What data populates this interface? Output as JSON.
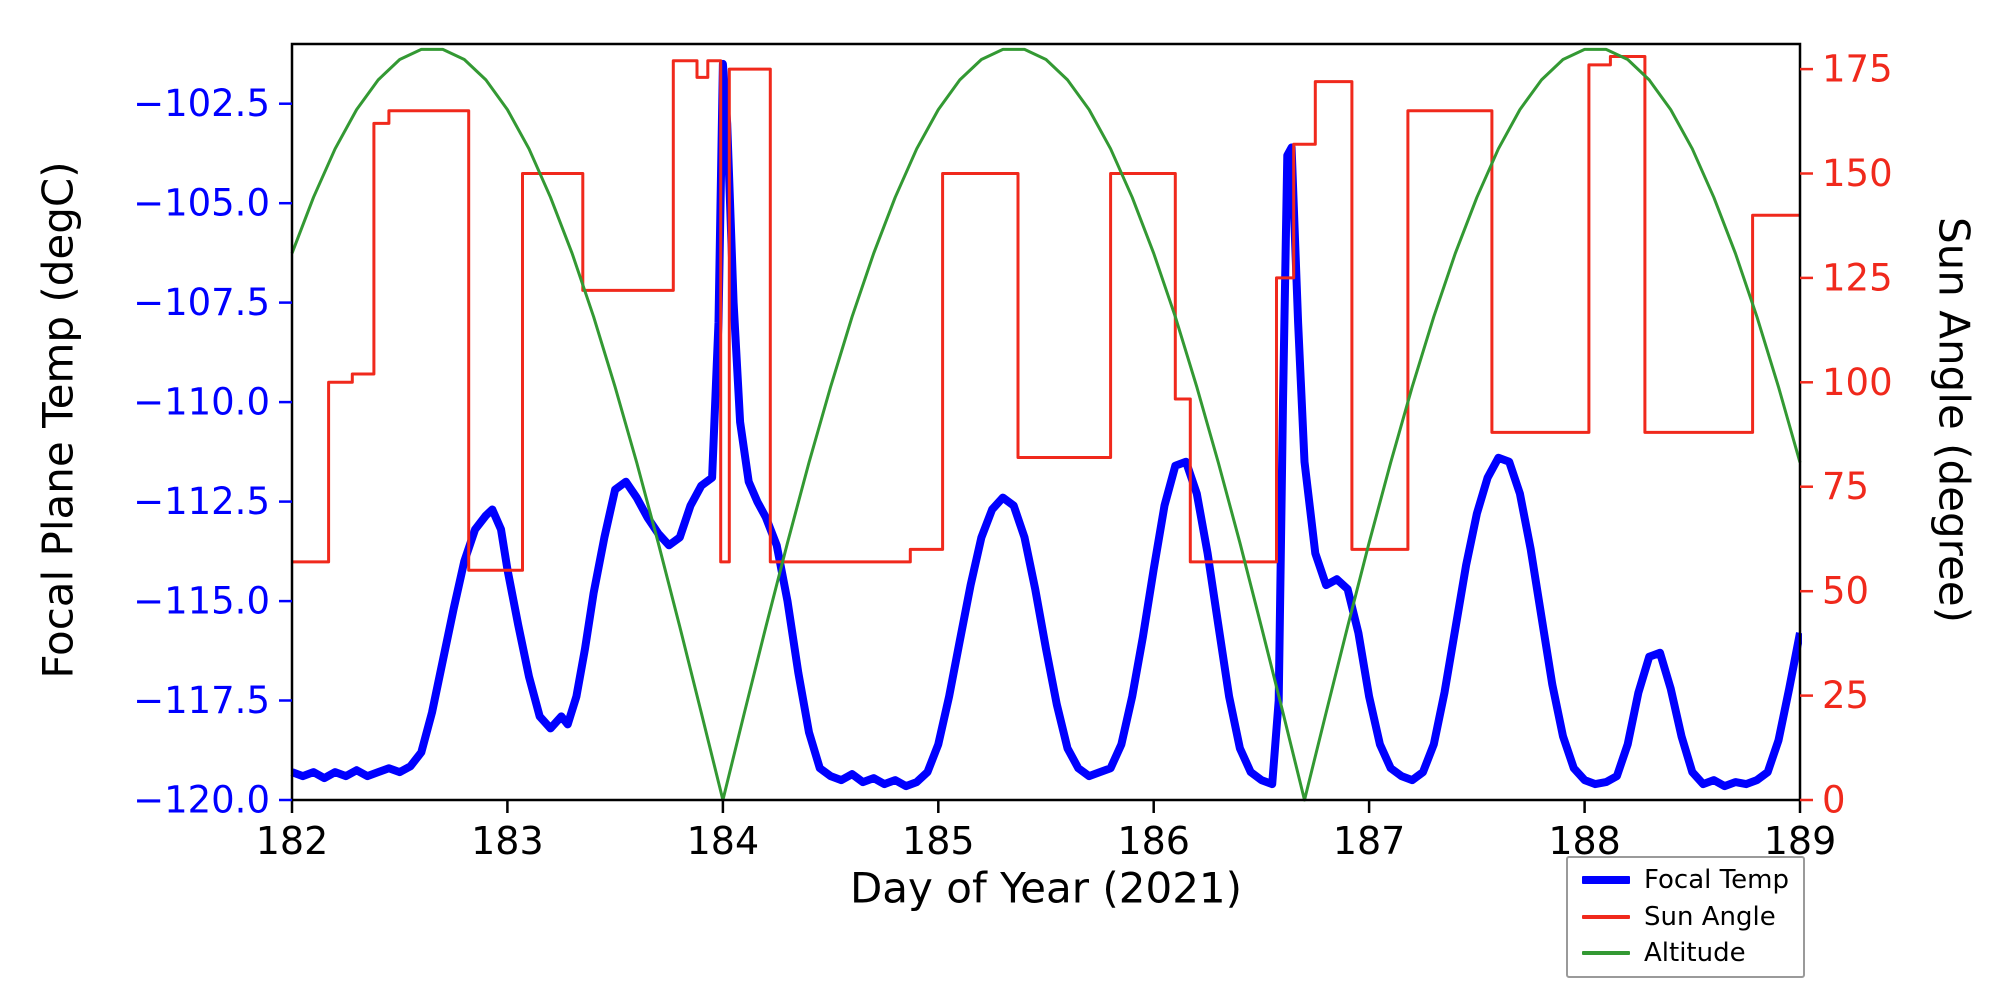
{
  "chart_data": {
    "type": "line",
    "title": "",
    "xlabel": "Day of Year (2021)",
    "x_range": [
      182,
      189
    ],
    "x_ticks": [
      182,
      183,
      184,
      185,
      186,
      187,
      188,
      189
    ],
    "grid": false,
    "legend_position": "lower right outside",
    "left_axis": {
      "label": "Focal Plane Temp (degC)",
      "range": [
        -120,
        -101
      ],
      "ticks": [
        -102.5,
        -105.0,
        -107.5,
        -110.0,
        -112.5,
        -115.0,
        -117.5,
        -120.0
      ],
      "tick_labels": [
        "−102.5",
        "−105.0",
        "−107.5",
        "−110.0",
        "−112.5",
        "−115.0",
        "−117.5",
        "−120.0"
      ],
      "color": "#0000ff"
    },
    "right_axis": {
      "label": "Sun Angle (degree)",
      "range": [
        0,
        181
      ],
      "ticks": [
        0,
        25,
        50,
        75,
        100,
        125,
        150,
        175
      ],
      "tick_labels": [
        "0",
        "25",
        "50",
        "75",
        "100",
        "125",
        "150",
        "175"
      ],
      "color": "#f0291c"
    },
    "series": [
      {
        "name": "Focal Temp",
        "axis": "left",
        "color": "#0000ff",
        "width": 8,
        "style": "line",
        "points": [
          [
            182.0,
            -119.3
          ],
          [
            182.05,
            -119.4
          ],
          [
            182.1,
            -119.3
          ],
          [
            182.15,
            -119.45
          ],
          [
            182.2,
            -119.3
          ],
          [
            182.25,
            -119.4
          ],
          [
            182.3,
            -119.25
          ],
          [
            182.35,
            -119.4
          ],
          [
            182.4,
            -119.3
          ],
          [
            182.45,
            -119.2
          ],
          [
            182.5,
            -119.3
          ],
          [
            182.55,
            -119.15
          ],
          [
            182.6,
            -118.8
          ],
          [
            182.65,
            -117.8
          ],
          [
            182.7,
            -116.5
          ],
          [
            182.75,
            -115.2
          ],
          [
            182.8,
            -114.0
          ],
          [
            182.85,
            -113.2
          ],
          [
            182.9,
            -112.85
          ],
          [
            182.93,
            -112.7
          ],
          [
            182.97,
            -113.2
          ],
          [
            183.0,
            -114.2
          ],
          [
            183.05,
            -115.6
          ],
          [
            183.1,
            -116.9
          ],
          [
            183.15,
            -117.9
          ],
          [
            183.2,
            -118.2
          ],
          [
            183.25,
            -117.9
          ],
          [
            183.28,
            -118.1
          ],
          [
            183.32,
            -117.4
          ],
          [
            183.36,
            -116.2
          ],
          [
            183.4,
            -114.8
          ],
          [
            183.45,
            -113.4
          ],
          [
            183.5,
            -112.2
          ],
          [
            183.55,
            -112.0
          ],
          [
            183.6,
            -112.4
          ],
          [
            183.65,
            -112.9
          ],
          [
            183.7,
            -113.3
          ],
          [
            183.75,
            -113.6
          ],
          [
            183.8,
            -113.4
          ],
          [
            183.85,
            -112.6
          ],
          [
            183.9,
            -112.1
          ],
          [
            183.95,
            -111.9
          ],
          [
            183.98,
            -108.0
          ],
          [
            184.0,
            -101.5
          ],
          [
            184.02,
            -103.0
          ],
          [
            184.05,
            -107.5
          ],
          [
            184.08,
            -110.5
          ],
          [
            184.12,
            -112.0
          ],
          [
            184.16,
            -112.5
          ],
          [
            184.2,
            -112.9
          ],
          [
            184.25,
            -113.6
          ],
          [
            184.3,
            -115.0
          ],
          [
            184.35,
            -116.8
          ],
          [
            184.4,
            -118.3
          ],
          [
            184.45,
            -119.2
          ],
          [
            184.5,
            -119.4
          ],
          [
            184.55,
            -119.5
          ],
          [
            184.6,
            -119.35
          ],
          [
            184.65,
            -119.55
          ],
          [
            184.7,
            -119.45
          ],
          [
            184.75,
            -119.6
          ],
          [
            184.8,
            -119.5
          ],
          [
            184.85,
            -119.65
          ],
          [
            184.9,
            -119.55
          ],
          [
            184.95,
            -119.3
          ],
          [
            185.0,
            -118.6
          ],
          [
            185.05,
            -117.4
          ],
          [
            185.1,
            -116.0
          ],
          [
            185.15,
            -114.6
          ],
          [
            185.2,
            -113.4
          ],
          [
            185.25,
            -112.7
          ],
          [
            185.3,
            -112.4
          ],
          [
            185.35,
            -112.6
          ],
          [
            185.4,
            -113.4
          ],
          [
            185.45,
            -114.7
          ],
          [
            185.5,
            -116.2
          ],
          [
            185.55,
            -117.6
          ],
          [
            185.6,
            -118.7
          ],
          [
            185.65,
            -119.2
          ],
          [
            185.7,
            -119.4
          ],
          [
            185.75,
            -119.3
          ],
          [
            185.8,
            -119.2
          ],
          [
            185.85,
            -118.6
          ],
          [
            185.9,
            -117.4
          ],
          [
            185.95,
            -115.9
          ],
          [
            186.0,
            -114.2
          ],
          [
            186.05,
            -112.6
          ],
          [
            186.1,
            -111.6
          ],
          [
            186.15,
            -111.5
          ],
          [
            186.2,
            -112.3
          ],
          [
            186.25,
            -113.8
          ],
          [
            186.3,
            -115.6
          ],
          [
            186.35,
            -117.4
          ],
          [
            186.4,
            -118.7
          ],
          [
            186.45,
            -119.3
          ],
          [
            186.5,
            -119.5
          ],
          [
            186.55,
            -119.6
          ],
          [
            186.58,
            -117.5
          ],
          [
            186.6,
            -110.0
          ],
          [
            186.62,
            -103.8
          ],
          [
            186.64,
            -103.6
          ],
          [
            186.67,
            -108.0
          ],
          [
            186.7,
            -111.5
          ],
          [
            186.75,
            -113.8
          ],
          [
            186.8,
            -114.6
          ],
          [
            186.85,
            -114.45
          ],
          [
            186.9,
            -114.7
          ],
          [
            186.95,
            -115.8
          ],
          [
            187.0,
            -117.4
          ],
          [
            187.05,
            -118.6
          ],
          [
            187.1,
            -119.2
          ],
          [
            187.15,
            -119.4
          ],
          [
            187.2,
            -119.5
          ],
          [
            187.25,
            -119.3
          ],
          [
            187.3,
            -118.6
          ],
          [
            187.35,
            -117.3
          ],
          [
            187.4,
            -115.7
          ],
          [
            187.45,
            -114.1
          ],
          [
            187.5,
            -112.8
          ],
          [
            187.55,
            -111.9
          ],
          [
            187.6,
            -111.4
          ],
          [
            187.65,
            -111.5
          ],
          [
            187.7,
            -112.3
          ],
          [
            187.75,
            -113.7
          ],
          [
            187.8,
            -115.4
          ],
          [
            187.85,
            -117.1
          ],
          [
            187.9,
            -118.4
          ],
          [
            187.95,
            -119.2
          ],
          [
            188.0,
            -119.5
          ],
          [
            188.05,
            -119.6
          ],
          [
            188.1,
            -119.55
          ],
          [
            188.15,
            -119.4
          ],
          [
            188.2,
            -118.6
          ],
          [
            188.25,
            -117.3
          ],
          [
            188.3,
            -116.4
          ],
          [
            188.35,
            -116.3
          ],
          [
            188.4,
            -117.2
          ],
          [
            188.45,
            -118.4
          ],
          [
            188.5,
            -119.3
          ],
          [
            188.55,
            -119.6
          ],
          [
            188.6,
            -119.5
          ],
          [
            188.65,
            -119.65
          ],
          [
            188.7,
            -119.55
          ],
          [
            188.75,
            -119.6
          ],
          [
            188.8,
            -119.5
          ],
          [
            188.85,
            -119.3
          ],
          [
            188.9,
            -118.5
          ],
          [
            188.95,
            -117.2
          ],
          [
            189.0,
            -115.8
          ]
        ]
      },
      {
        "name": "Sun Angle",
        "axis": "right",
        "color": "#f0291c",
        "width": 3,
        "style": "step",
        "points": [
          [
            182.0,
            57
          ],
          [
            182.17,
            100
          ],
          [
            182.28,
            102
          ],
          [
            182.38,
            162
          ],
          [
            182.45,
            165
          ],
          [
            182.82,
            55
          ],
          [
            183.07,
            150
          ],
          [
            183.35,
            122
          ],
          [
            183.77,
            177
          ],
          [
            183.88,
            173
          ],
          [
            183.93,
            177
          ],
          [
            183.99,
            57
          ],
          [
            184.03,
            175
          ],
          [
            184.22,
            57
          ],
          [
            184.87,
            60
          ],
          [
            185.02,
            150
          ],
          [
            185.37,
            82
          ],
          [
            185.8,
            150
          ],
          [
            186.1,
            96
          ],
          [
            186.17,
            57
          ],
          [
            186.57,
            125
          ],
          [
            186.65,
            157
          ],
          [
            186.75,
            172
          ],
          [
            186.92,
            60
          ],
          [
            187.18,
            165
          ],
          [
            187.57,
            88
          ],
          [
            188.02,
            176
          ],
          [
            188.12,
            178
          ],
          [
            188.28,
            88
          ],
          [
            188.78,
            140
          ],
          [
            189.0,
            140
          ]
        ]
      },
      {
        "name": "Altitude",
        "axis": "right",
        "color": "#339933",
        "width": 3,
        "style": "line",
        "points": [
          [
            182.0,
            130.9
          ],
          [
            182.1,
            144.3
          ],
          [
            182.2,
            155.9
          ],
          [
            182.3,
            165.3
          ],
          [
            182.4,
            172.4
          ],
          [
            182.5,
            177.3
          ],
          [
            182.6,
            179.7
          ],
          [
            182.7,
            179.7
          ],
          [
            182.8,
            177.3
          ],
          [
            182.9,
            172.4
          ],
          [
            183.0,
            165.3
          ],
          [
            183.1,
            155.9
          ],
          [
            183.2,
            144.3
          ],
          [
            183.3,
            130.9
          ],
          [
            183.4,
            115.7
          ],
          [
            183.5,
            98.9
          ],
          [
            183.6,
            80.8
          ],
          [
            183.7,
            61.6
          ],
          [
            183.8,
            41.5
          ],
          [
            183.9,
            20.9
          ],
          [
            184.0,
            0
          ],
          [
            184.1,
            20.9
          ],
          [
            184.2,
            41.5
          ],
          [
            184.3,
            61.6
          ],
          [
            184.4,
            80.8
          ],
          [
            184.5,
            98.9
          ],
          [
            184.6,
            115.7
          ],
          [
            184.7,
            130.9
          ],
          [
            184.8,
            144.3
          ],
          [
            184.9,
            155.9
          ],
          [
            185.0,
            165.3
          ],
          [
            185.1,
            172.4
          ],
          [
            185.2,
            177.3
          ],
          [
            185.3,
            179.7
          ],
          [
            185.4,
            179.7
          ],
          [
            185.5,
            177.3
          ],
          [
            185.6,
            172.4
          ],
          [
            185.7,
            165.3
          ],
          [
            185.8,
            155.9
          ],
          [
            185.9,
            144.3
          ],
          [
            186.0,
            130.9
          ],
          [
            186.1,
            115.7
          ],
          [
            186.2,
            98.9
          ],
          [
            186.3,
            80.8
          ],
          [
            186.4,
            61.6
          ],
          [
            186.5,
            41.5
          ],
          [
            186.6,
            20.9
          ],
          [
            186.7,
            0
          ],
          [
            186.8,
            20.9
          ],
          [
            186.9,
            41.5
          ],
          [
            187.0,
            61.6
          ],
          [
            187.1,
            80.8
          ],
          [
            187.2,
            98.9
          ],
          [
            187.3,
            115.7
          ],
          [
            187.4,
            130.9
          ],
          [
            187.5,
            144.3
          ],
          [
            187.6,
            155.9
          ],
          [
            187.7,
            165.3
          ],
          [
            187.8,
            172.4
          ],
          [
            187.9,
            177.3
          ],
          [
            188.0,
            179.7
          ],
          [
            188.1,
            179.7
          ],
          [
            188.2,
            177.3
          ],
          [
            188.3,
            172.4
          ],
          [
            188.4,
            165.3
          ],
          [
            188.5,
            155.9
          ],
          [
            188.6,
            144.3
          ],
          [
            188.7,
            130.9
          ],
          [
            188.8,
            115.7
          ],
          [
            188.9,
            98.9
          ],
          [
            189.0,
            80.8
          ]
        ]
      }
    ]
  }
}
